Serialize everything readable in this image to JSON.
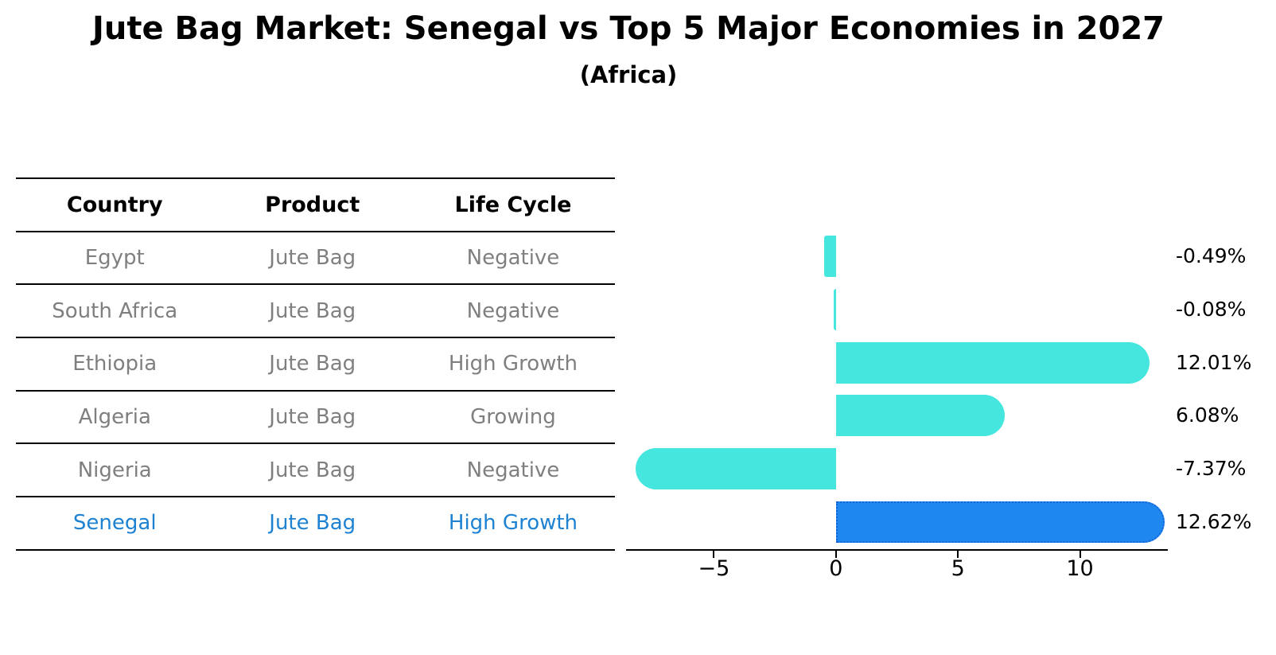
{
  "title": "Jute Bag Market: Senegal vs Top 5 Major Economies in 2027",
  "subtitle": "(Africa)",
  "table": {
    "columns": [
      "Country",
      "Product",
      "Life Cycle"
    ],
    "rows": [
      {
        "country": "Egypt",
        "product": "Jute Bag",
        "life_cycle": "Negative",
        "highlight": false
      },
      {
        "country": "South Africa",
        "product": "Jute Bag",
        "life_cycle": "Negative",
        "highlight": false
      },
      {
        "country": "Ethiopia",
        "product": "Jute Bag",
        "life_cycle": "High Growth",
        "highlight": false
      },
      {
        "country": "Algeria",
        "product": "Jute Bag",
        "life_cycle": "Growing",
        "highlight": false
      },
      {
        "country": "Nigeria",
        "product": "Jute Bag",
        "life_cycle": "Negative",
        "highlight": false
      },
      {
        "country": "Senegal",
        "product": "Jute Bag",
        "life_cycle": "High Growth",
        "highlight": true
      }
    ]
  },
  "chart_data": {
    "type": "bar",
    "orientation": "horizontal",
    "title": "Jute Bag Market: Senegal vs Top 5 Major Economies in 2027",
    "subtitle": "(Africa)",
    "categories": [
      "Egypt",
      "South Africa",
      "Ethiopia",
      "Algeria",
      "Nigeria",
      "Senegal"
    ],
    "values": [
      -0.49,
      -0.08,
      12.01,
      6.08,
      -7.37,
      12.62
    ],
    "value_labels": [
      "-0.49%",
      "-0.08%",
      "12.01%",
      "6.08%",
      "-7.37%",
      "12.62%"
    ],
    "highlight_index": 5,
    "x_ticks": [
      -5,
      0,
      5,
      10
    ],
    "x_tick_labels": [
      "−5",
      "0",
      "5",
      "10"
    ],
    "xlim": [
      -8.6,
      13.6
    ],
    "grid": false,
    "legend": "none",
    "bar_color": "#45e6de",
    "highlight_bar_color": "#1e87f0",
    "highlight_bar_edge_color": "#1565d8",
    "highlight_text_color": "#1e82d2",
    "row_text_color": "#7f7f7f"
  }
}
